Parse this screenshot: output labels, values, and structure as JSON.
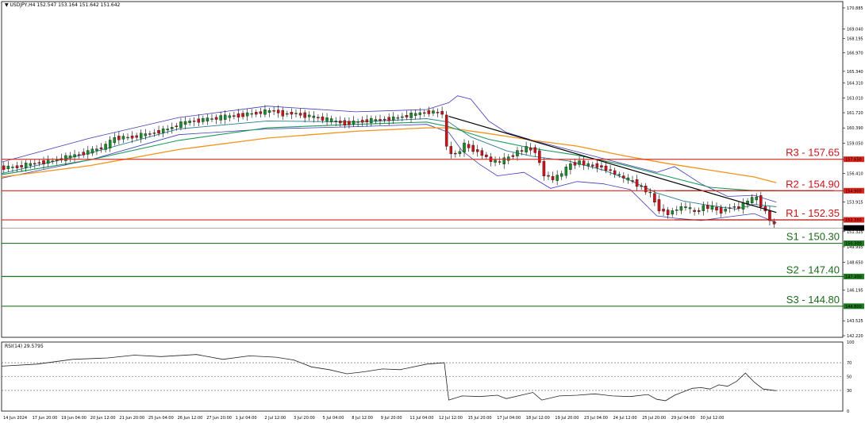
{
  "chart_data": {
    "type": "candlestick",
    "main_title": "▼ USDJPY,H4  152.547 153.164 151.642 151.642",
    "rsi_title": "RSI(14) 29.5795",
    "price_axis": {
      "ylim": [
        142.22,
        171.3
      ],
      "ticks": [
        "170.885",
        "169.040",
        "168.195",
        "166.970",
        "165.340",
        "164.310",
        "163.010",
        "161.720",
        "160.390",
        "159.050",
        "157.650",
        "156.410",
        "154.900",
        "153.915",
        "152.350",
        "151.642",
        "151.325",
        "149.995",
        "148.650",
        "147.400",
        "146.195",
        "144.800",
        "143.525",
        "142.220"
      ],
      "tick_values": [
        170.885,
        169.04,
        168.195,
        166.97,
        165.34,
        164.31,
        163.01,
        161.72,
        160.39,
        159.05,
        157.65,
        156.41,
        154.9,
        153.915,
        152.35,
        151.642,
        151.325,
        149.995,
        148.65,
        147.4,
        146.195,
        144.8,
        143.525,
        142.22
      ]
    },
    "rsi_axis": {
      "ylim": [
        0,
        100
      ],
      "ticks": [
        "100",
        "70",
        "50",
        "30",
        "0"
      ],
      "levels": [
        70,
        50,
        30
      ]
    },
    "time_axis": {
      "labels": [
        "14 Jun 2024",
        "17 Jun 20:00",
        "19 Jun 04:00",
        "20 Jun 12:00",
        "21 Jun 20:00",
        "25 Jun 04:00",
        "26 Jun 12:00",
        "27 Jun 20:00",
        "1 Jul 04:00",
        "2 Jul 12:00",
        "3 Jul 20:00",
        "5 Jul 04:00",
        "8 Jul 12:00",
        "9 Jul 20:00",
        "11 Jul 04:00",
        "12 Jul 12:00",
        "15 Jul 20:00",
        "17 Jul 04:00",
        "18 Jul 12:00",
        "19 Jul 20:00",
        "23 Jul 04:00",
        "24 Jul 12:00",
        "25 Jul 20:00",
        "29 Jul 04:00",
        "30 Jul 12:00"
      ]
    },
    "levels": [
      {
        "name": "R3",
        "value": 157.65,
        "label": "R3 - 157.65",
        "tag": "157.650",
        "color": "#e0241b"
      },
      {
        "name": "R2",
        "value": 154.9,
        "label": "R2 - 154.90",
        "tag": "154.900",
        "color": "#e0241b"
      },
      {
        "name": "R1",
        "value": 152.35,
        "label": "R1 - 152.35",
        "tag": "152.350",
        "color": "#e0241b"
      },
      {
        "name": "S1",
        "value": 150.3,
        "label": "S1 - 150.30",
        "tag": "150.300",
        "color": "#207a20"
      },
      {
        "name": "S2",
        "value": 147.4,
        "label": "S2 - 147.40",
        "tag": "147.400",
        "color": "#207a20"
      },
      {
        "name": "S3",
        "value": 144.8,
        "label": "S3 - 144.80",
        "tag": "144.800",
        "color": "#207a20"
      }
    ],
    "current_price": {
      "value": 151.642,
      "tag": "151.642"
    },
    "price_path": [
      [
        0,
        156.9
      ],
      [
        4,
        157.0
      ],
      [
        8,
        157.3
      ],
      [
        12,
        157.5
      ],
      [
        16,
        157.9
      ],
      [
        20,
        158.3
      ],
      [
        24,
        158.8
      ],
      [
        26,
        159.5
      ],
      [
        30,
        159.6
      ],
      [
        34,
        159.9
      ],
      [
        38,
        160.3
      ],
      [
        42,
        160.9
      ],
      [
        46,
        161.1
      ],
      [
        50,
        161.3
      ],
      [
        54,
        161.5
      ],
      [
        58,
        161.7
      ],
      [
        62,
        161.9
      ],
      [
        64,
        161.6
      ],
      [
        66,
        161.7
      ],
      [
        70,
        161.4
      ],
      [
        74,
        161.1
      ],
      [
        78,
        160.8
      ],
      [
        82,
        161.0
      ],
      [
        86,
        161.1
      ],
      [
        90,
        161.3
      ],
      [
        94,
        161.6
      ],
      [
        97,
        161.8
      ],
      [
        100,
        161.7
      ],
      [
        101,
        158.6
      ],
      [
        103,
        158.0
      ],
      [
        105,
        158.9
      ],
      [
        107,
        158.5
      ],
      [
        109,
        158.1
      ],
      [
        111,
        157.5
      ],
      [
        113,
        157.4
      ],
      [
        115,
        157.8
      ],
      [
        117,
        158.3
      ],
      [
        119,
        158.6
      ],
      [
        121,
        158.4
      ],
      [
        123,
        156.3
      ],
      [
        125,
        155.9
      ],
      [
        127,
        156.4
      ],
      [
        129,
        157.2
      ],
      [
        131,
        157.4
      ],
      [
        133,
        157.1
      ],
      [
        135,
        157.1
      ],
      [
        137,
        156.8
      ],
      [
        139,
        156.4
      ],
      [
        141,
        156.0
      ],
      [
        143,
        155.7
      ],
      [
        145,
        155.2
      ],
      [
        147,
        154.6
      ],
      [
        149,
        153.3
      ],
      [
        151,
        152.9
      ],
      [
        153,
        153.3
      ],
      [
        155,
        153.5
      ],
      [
        157,
        153.0
      ],
      [
        159,
        153.5
      ],
      [
        161,
        153.4
      ],
      [
        163,
        153.1
      ],
      [
        165,
        153.5
      ],
      [
        167,
        153.4
      ],
      [
        169,
        154.0
      ],
      [
        171,
        154.3
      ],
      [
        173,
        153.0
      ],
      [
        175,
        151.8
      ]
    ],
    "bb_upper": [
      [
        0,
        157.4
      ],
      [
        20,
        159.5
      ],
      [
        40,
        161.3
      ],
      [
        60,
        162.3
      ],
      [
        80,
        161.8
      ],
      [
        96,
        162.0
      ],
      [
        101,
        162.6
      ],
      [
        103,
        163.2
      ],
      [
        106,
        162.9
      ],
      [
        110,
        161.0
      ],
      [
        114,
        160.0
      ],
      [
        120,
        159.3
      ],
      [
        128,
        158.5
      ],
      [
        136,
        157.7
      ],
      [
        144,
        156.9
      ],
      [
        148,
        156.5
      ],
      [
        152,
        157.0
      ],
      [
        158,
        155.5
      ],
      [
        164,
        154.4
      ],
      [
        170,
        154.5
      ],
      [
        175,
        153.9
      ]
    ],
    "bb_lower": [
      [
        0,
        156.0
      ],
      [
        20,
        157.6
      ],
      [
        40,
        159.8
      ],
      [
        60,
        160.3
      ],
      [
        80,
        160.5
      ],
      [
        96,
        160.7
      ],
      [
        101,
        160.0
      ],
      [
        104,
        158.4
      ],
      [
        108,
        157.2
      ],
      [
        112,
        156.2
      ],
      [
        118,
        156.5
      ],
      [
        124,
        155.1
      ],
      [
        130,
        155.7
      ],
      [
        136,
        155.5
      ],
      [
        142,
        155.0
      ],
      [
        148,
        152.7
      ],
      [
        152,
        152.5
      ],
      [
        158,
        152.3
      ],
      [
        164,
        152.6
      ],
      [
        170,
        152.9
      ],
      [
        175,
        152.1
      ]
    ],
    "sma_fast": [
      [
        0,
        156.4
      ],
      [
        20,
        158.2
      ],
      [
        40,
        160.3
      ],
      [
        60,
        161.0
      ],
      [
        80,
        160.9
      ],
      [
        96,
        161.2
      ],
      [
        101,
        160.9
      ],
      [
        106,
        159.6
      ],
      [
        114,
        158.4
      ],
      [
        120,
        157.9
      ],
      [
        128,
        157.5
      ],
      [
        136,
        156.7
      ],
      [
        142,
        155.8
      ],
      [
        148,
        154.7
      ],
      [
        154,
        154.0
      ],
      [
        160,
        153.6
      ],
      [
        166,
        153.3
      ],
      [
        170,
        153.7
      ],
      [
        175,
        153.5
      ]
    ],
    "sma_mid": [
      [
        0,
        156.3
      ],
      [
        20,
        157.6
      ],
      [
        40,
        159.3
      ],
      [
        60,
        160.4
      ],
      [
        80,
        160.7
      ],
      [
        96,
        160.9
      ],
      [
        101,
        160.5
      ],
      [
        110,
        159.4
      ],
      [
        120,
        158.6
      ],
      [
        130,
        158.0
      ],
      [
        140,
        157.2
      ],
      [
        150,
        156.2
      ],
      [
        160,
        155.2
      ],
      [
        170,
        154.9
      ],
      [
        175,
        154.9
      ]
    ],
    "sma_slow": [
      [
        0,
        156.1
      ],
      [
        20,
        157.1
      ],
      [
        40,
        158.5
      ],
      [
        60,
        159.5
      ],
      [
        80,
        160.1
      ],
      [
        96,
        160.4
      ],
      [
        101,
        160.4
      ],
      [
        110,
        159.9
      ],
      [
        120,
        159.3
      ],
      [
        130,
        158.8
      ],
      [
        140,
        158.0
      ],
      [
        150,
        157.3
      ],
      [
        160,
        156.7
      ],
      [
        170,
        156.1
      ],
      [
        175,
        155.6
      ]
    ],
    "trendlines": [
      {
        "points": [
          [
            101,
            161.4
          ],
          [
            175,
            153.0
          ]
        ]
      },
      {
        "points": [
          [
            150,
            154.9
          ],
          [
            188,
            154.9
          ]
        ]
      },
      {
        "points": [
          [
            152,
            152.35
          ],
          [
            192,
            152.35
          ]
        ]
      }
    ],
    "rsi_path": [
      [
        0,
        65
      ],
      [
        8,
        68
      ],
      [
        16,
        75
      ],
      [
        24,
        77
      ],
      [
        30,
        81
      ],
      [
        36,
        79
      ],
      [
        44,
        82
      ],
      [
        50,
        75
      ],
      [
        56,
        80
      ],
      [
        62,
        78
      ],
      [
        66,
        74
      ],
      [
        70,
        64
      ],
      [
        74,
        60
      ],
      [
        78,
        54
      ],
      [
        82,
        57
      ],
      [
        86,
        61
      ],
      [
        90,
        60
      ],
      [
        96,
        68
      ],
      [
        100,
        70
      ],
      [
        101,
        16
      ],
      [
        104,
        22
      ],
      [
        108,
        21
      ],
      [
        112,
        23
      ],
      [
        114,
        18
      ],
      [
        118,
        24
      ],
      [
        120,
        27
      ],
      [
        122,
        16
      ],
      [
        126,
        22
      ],
      [
        130,
        23
      ],
      [
        134,
        25
      ],
      [
        138,
        22
      ],
      [
        142,
        21
      ],
      [
        146,
        24
      ],
      [
        148,
        17
      ],
      [
        150,
        15
      ],
      [
        152,
        23
      ],
      [
        154,
        28
      ],
      [
        156,
        33
      ],
      [
        158,
        34
      ],
      [
        160,
        32
      ],
      [
        162,
        38
      ],
      [
        164,
        36
      ],
      [
        166,
        43
      ],
      [
        168,
        55
      ],
      [
        170,
        42
      ],
      [
        172,
        32
      ],
      [
        175,
        29.58
      ]
    ]
  }
}
